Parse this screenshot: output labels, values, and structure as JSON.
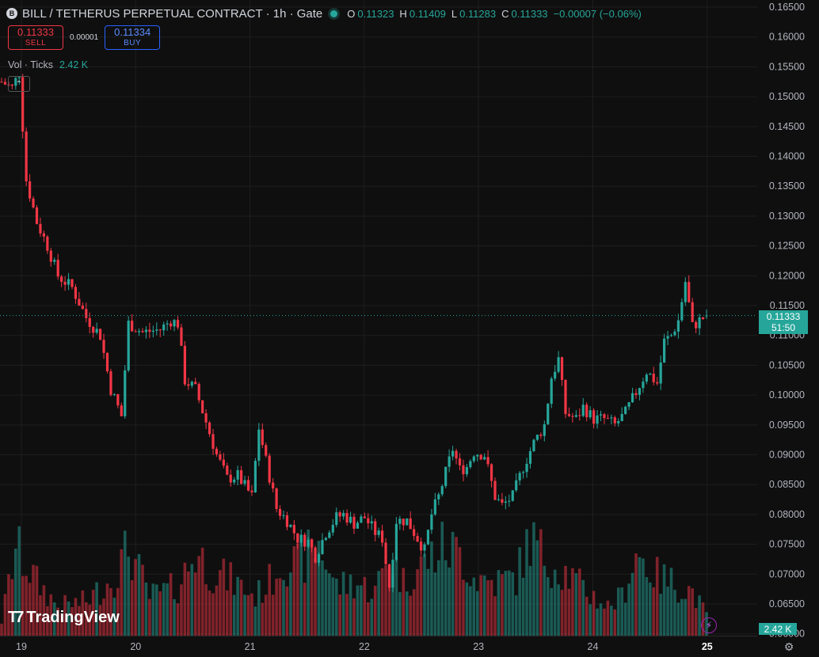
{
  "header": {
    "title": "BILL / TETHERUS PERPETUAL CONTRACT · 1h · Gate",
    "symbol_icon": "B",
    "ohlc": {
      "o_label": "O",
      "o_value": "0.11323",
      "h_label": "H",
      "h_value": "0.11409",
      "l_label": "L",
      "l_value": "0.11283",
      "c_label": "C",
      "c_value": "0.11333",
      "change": "−0.00007 (−0.06%)"
    }
  },
  "trade": {
    "sell_price": "0.11333",
    "sell_label": "SELL",
    "spread": "0.00001",
    "buy_price": "0.11334",
    "buy_label": "BUY"
  },
  "volume_legend": {
    "label": "Vol · Ticks",
    "value": "2.42 K"
  },
  "price_tag": {
    "price": "0.11333",
    "countdown": "51:50"
  },
  "volume_tag": "2.42 K",
  "logo_text": "TradingView",
  "colors": {
    "up": "#26a69a",
    "down": "#f23645",
    "background": "#0f0f0f",
    "grid": "#1e1e1e",
    "text": "#d1d4dc"
  },
  "icons": {
    "collapse": "chevron-up-icon",
    "bolt": "lightning-icon",
    "settings": "gear-icon"
  },
  "chart_data": {
    "type": "candlestick",
    "y_ticks": [
      "0.16500",
      "0.16000",
      "0.15500",
      "0.15000",
      "0.14500",
      "0.14000",
      "0.13500",
      "0.13000",
      "0.12500",
      "0.12000",
      "0.11500",
      "0.11000",
      "0.10500",
      "0.10000",
      "0.09500",
      "0.09000",
      "0.08500",
      "0.08000",
      "0.07500",
      "0.07000",
      "0.06500",
      "0.06000"
    ],
    "x_ticks": [
      "19",
      "20",
      "21",
      "22",
      "23",
      "24",
      "25"
    ],
    "ylim": [
      0.0597,
      0.1662
    ],
    "current_price": 0.11333,
    "close_path_points": [
      [
        0,
        0.1525
      ],
      [
        3,
        0.1515
      ],
      [
        5,
        0.154
      ],
      [
        7,
        0.136
      ],
      [
        10,
        0.129
      ],
      [
        13,
        0.125
      ],
      [
        16,
        0.12
      ],
      [
        20,
        0.118
      ],
      [
        24,
        0.113
      ],
      [
        28,
        0.11
      ],
      [
        31,
        0.101
      ],
      [
        34,
        0.0965
      ],
      [
        36,
        0.112
      ],
      [
        40,
        0.1105
      ],
      [
        45,
        0.111
      ],
      [
        48,
        0.1125
      ],
      [
        50,
        0.112
      ],
      [
        52,
        0.1025
      ],
      [
        55,
        0.101
      ],
      [
        58,
        0.0955
      ],
      [
        61,
        0.09
      ],
      [
        64,
        0.086
      ],
      [
        67,
        0.0865
      ],
      [
        71,
        0.083
      ],
      [
        73,
        0.0945
      ],
      [
        75,
        0.089
      ],
      [
        78,
        0.081
      ],
      [
        81,
        0.079
      ],
      [
        84,
        0.076
      ],
      [
        87,
        0.0755
      ],
      [
        89,
        0.073
      ],
      [
        92,
        0.077
      ],
      [
        95,
        0.0795
      ],
      [
        97,
        0.08
      ],
      [
        100,
        0.0785
      ],
      [
        103,
        0.0795
      ],
      [
        106,
        0.077
      ],
      [
        108,
        0.076
      ],
      [
        110,
        0.068
      ],
      [
        112,
        0.079
      ],
      [
        115,
        0.079
      ],
      [
        118,
        0.076
      ],
      [
        120,
        0.074
      ],
      [
        122,
        0.08
      ],
      [
        124,
        0.083
      ],
      [
        126,
        0.087
      ],
      [
        128,
        0.091
      ],
      [
        130,
        0.0875
      ],
      [
        132,
        0.088
      ],
      [
        134,
        0.0905
      ],
      [
        137,
        0.09
      ],
      [
        140,
        0.083
      ],
      [
        142,
        0.0815
      ],
      [
        145,
        0.083
      ],
      [
        148,
        0.088
      ],
      [
        151,
        0.092
      ],
      [
        154,
        0.095
      ],
      [
        156,
        0.103
      ],
      [
        158,
        0.106
      ],
      [
        160,
        0.097
      ],
      [
        163,
        0.096
      ],
      [
        165,
        0.098
      ],
      [
        168,
        0.096
      ],
      [
        171,
        0.096
      ],
      [
        174,
        0.095
      ],
      [
        177,
        0.097
      ],
      [
        180,
        0.1005
      ],
      [
        183,
        0.104
      ],
      [
        186,
        0.102
      ],
      [
        188,
        0.109
      ],
      [
        190,
        0.11
      ],
      [
        192,
        0.1125
      ],
      [
        194,
        0.119
      ],
      [
        196,
        0.1115
      ],
      [
        198,
        0.1125
      ],
      [
        200,
        0.1133
      ]
    ],
    "volume_path_points": [
      [
        0,
        0.15
      ],
      [
        4,
        0.9
      ],
      [
        10,
        0.55
      ],
      [
        16,
        0.3
      ],
      [
        24,
        0.35
      ],
      [
        32,
        0.6
      ],
      [
        36,
        0.9
      ],
      [
        42,
        0.4
      ],
      [
        50,
        0.5
      ],
      [
        55,
        0.85
      ],
      [
        60,
        0.65
      ],
      [
        66,
        0.55
      ],
      [
        72,
        0.4
      ],
      [
        76,
        0.55
      ],
      [
        80,
        0.8
      ],
      [
        84,
        0.7
      ],
      [
        90,
        0.95
      ],
      [
        95,
        0.5
      ],
      [
        100,
        0.55
      ],
      [
        106,
        0.45
      ],
      [
        110,
        0.85
      ],
      [
        114,
        0.55
      ],
      [
        120,
        0.75
      ],
      [
        125,
        0.9
      ],
      [
        130,
        0.85
      ],
      [
        134,
        0.6
      ],
      [
        140,
        0.55
      ],
      [
        146,
        0.6
      ],
      [
        150,
        1.0
      ],
      [
        154,
        0.8
      ],
      [
        160,
        0.65
      ],
      [
        166,
        0.45
      ],
      [
        172,
        0.3
      ],
      [
        176,
        0.4
      ],
      [
        180,
        0.85
      ],
      [
        186,
        0.6
      ],
      [
        190,
        0.55
      ],
      [
        196,
        0.45
      ],
      [
        200,
        0.2
      ]
    ]
  }
}
